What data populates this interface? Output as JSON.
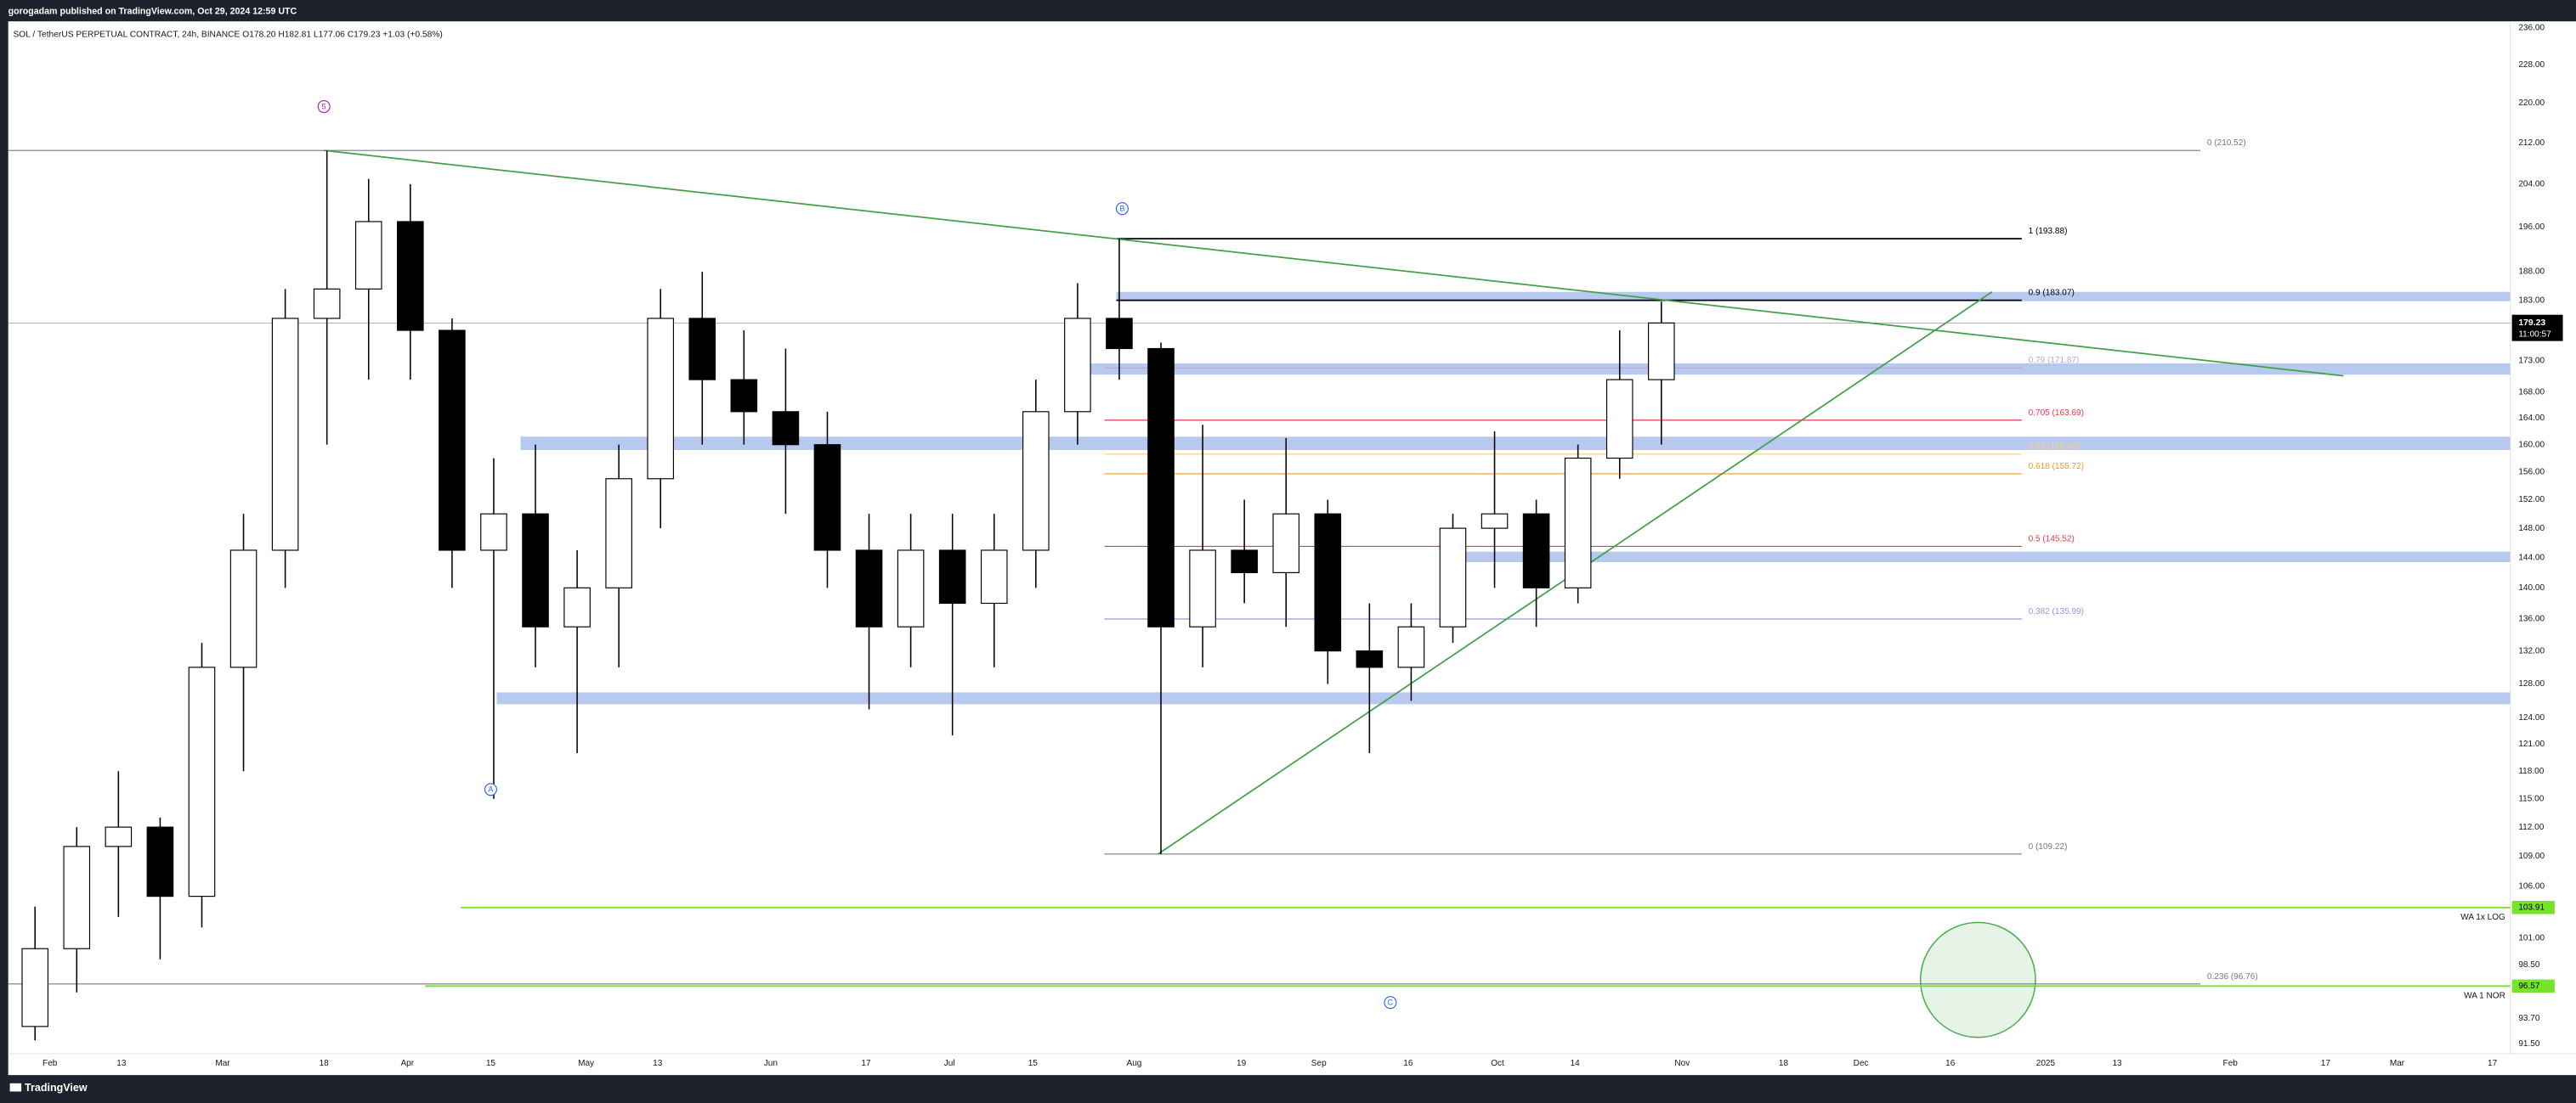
{
  "header": {
    "publisher": "gorogadam published on TradingView.com, Oct 29, 2024 12:59 UTC",
    "symbol_info": "SOL / TetherUS PERPETUAL CONTRACT, 24h, BINANCE O178.20 H182.81 L177.06 C179.23 +1.03 (+0.58%)"
  },
  "footer": {
    "brand": "TradingView"
  },
  "chart_data": {
    "type": "candlestick",
    "log_scale": true,
    "grid": false,
    "up_color": "#ffffff",
    "down_color": "#000000",
    "x": [
      "2024-01-26",
      "2024-02-02",
      "2024-02-09",
      "2024-02-16",
      "2024-02-23",
      "2024-03-01",
      "2024-03-08",
      "2024-03-15",
      "2024-03-22",
      "2024-03-29",
      "2024-04-05",
      "2024-04-12",
      "2024-04-19",
      "2024-04-26",
      "2024-05-03",
      "2024-05-10",
      "2024-05-17",
      "2024-05-24",
      "2024-05-31",
      "2024-06-07",
      "2024-06-14",
      "2024-06-21",
      "2024-06-28",
      "2024-07-05",
      "2024-07-12",
      "2024-07-19",
      "2024-07-26",
      "2024-08-02",
      "2024-08-09",
      "2024-08-16",
      "2024-08-23",
      "2024-08-30",
      "2024-09-06",
      "2024-09-13",
      "2024-09-20",
      "2024-09-27",
      "2024-10-04",
      "2024-10-11",
      "2024-10-18",
      "2024-10-25"
    ],
    "open": [
      93,
      100,
      110,
      112,
      105,
      130,
      145,
      180,
      185,
      197,
      178,
      145,
      150,
      135,
      140,
      155,
      180,
      170,
      165,
      160,
      145,
      135,
      145,
      138,
      145,
      165,
      180,
      175,
      135,
      145,
      142,
      150,
      132,
      130,
      135,
      148,
      150,
      140,
      158,
      170
    ],
    "high": [
      104,
      112,
      118,
      113,
      133,
      150,
      185,
      210.52,
      205,
      204,
      180,
      158,
      160,
      145,
      160,
      185,
      188,
      178,
      175,
      165,
      150,
      150,
      150,
      150,
      170,
      186,
      193.88,
      176,
      163,
      152,
      161,
      152,
      138,
      138,
      150,
      162,
      152,
      160,
      178,
      182.81
    ],
    "low": [
      91.8,
      96,
      103,
      99,
      102,
      118,
      140,
      160,
      170,
      170,
      140,
      115,
      130,
      120,
      130,
      148,
      160,
      160,
      150,
      140,
      125,
      130,
      122,
      130,
      140,
      160,
      170,
      109.22,
      130,
      138,
      135,
      128,
      120,
      126,
      133,
      140,
      135,
      138,
      155,
      160
    ],
    "close": [
      100,
      110,
      112,
      105,
      130,
      145,
      180,
      185,
      197,
      178,
      145,
      150,
      135,
      140,
      155,
      180,
      170,
      165,
      160,
      145,
      135,
      145,
      138,
      145,
      165,
      180,
      175,
      135,
      145,
      142,
      150,
      132,
      130,
      135,
      148,
      150,
      140,
      158,
      170,
      179.23
    ],
    "countdown": "11:00:57",
    "xlim": [
      "2024-01-25",
      "2025-03-20"
    ],
    "xticks": [
      {
        "value": "2024-02-01",
        "label": "Feb"
      },
      {
        "value": "2024-02-13",
        "label": "13"
      },
      {
        "value": "2024-03-01",
        "label": "Mar"
      },
      {
        "value": "2024-03-18",
        "label": "18"
      },
      {
        "value": "2024-04-01",
        "label": "Apr"
      },
      {
        "value": "2024-04-15",
        "label": "15"
      },
      {
        "value": "2024-05-01",
        "label": "May"
      },
      {
        "value": "2024-05-13",
        "label": "13"
      },
      {
        "value": "2024-06-01",
        "label": "Jun"
      },
      {
        "value": "2024-06-17",
        "label": "17"
      },
      {
        "value": "2024-07-01",
        "label": "Jul"
      },
      {
        "value": "2024-07-15",
        "label": "15"
      },
      {
        "value": "2024-08-01",
        "label": "Aug"
      },
      {
        "value": "2024-08-19",
        "label": "19"
      },
      {
        "value": "2024-09-01",
        "label": "Sep"
      },
      {
        "value": "2024-09-16",
        "label": "16"
      },
      {
        "value": "2024-10-01",
        "label": "Oct"
      },
      {
        "value": "2024-10-14",
        "label": "14"
      },
      {
        "value": "2024-11-01",
        "label": "Nov"
      },
      {
        "value": "2024-11-18",
        "label": "18"
      },
      {
        "value": "2024-12-01",
        "label": "Dec"
      },
      {
        "value": "2024-12-16",
        "label": "16"
      },
      {
        "value": "2025-01-01",
        "label": "2025"
      },
      {
        "value": "2025-01-13",
        "label": "13"
      },
      {
        "value": "2025-02-01",
        "label": "Feb"
      },
      {
        "value": "2025-02-17",
        "label": "17"
      },
      {
        "value": "2025-03-01",
        "label": "Mar"
      },
      {
        "value": "2025-03-17",
        "label": "17"
      }
    ],
    "ylim": [
      91.5,
      236
    ],
    "yticks": [
      {
        "value": 236,
        "label": "236.00"
      },
      {
        "value": 228,
        "label": "228.00"
      },
      {
        "value": 220,
        "label": "220.00"
      },
      {
        "value": 212,
        "label": "212.00"
      },
      {
        "value": 204,
        "label": "204.00"
      },
      {
        "value": 196,
        "label": "196.00"
      },
      {
        "value": 188,
        "label": "188.00"
      },
      {
        "value": 183,
        "label": "183.00"
      },
      {
        "value": 178,
        "label": "178.00"
      },
      {
        "value": 173,
        "label": "173.00"
      },
      {
        "value": 168,
        "label": "168.00"
      },
      {
        "value": 164,
        "label": "164.00"
      },
      {
        "value": 160,
        "label": "160.00"
      },
      {
        "value": 156,
        "label": "156.00"
      },
      {
        "value": 152,
        "label": "152.00"
      },
      {
        "value": 148,
        "label": "148.00"
      },
      {
        "value": 144,
        "label": "144.00"
      },
      {
        "value": 140,
        "label": "140.00"
      },
      {
        "value": 136,
        "label": "136.00"
      },
      {
        "value": 132,
        "label": "132.00"
      },
      {
        "value": 128,
        "label": "128.00"
      },
      {
        "value": 124,
        "label": "124.00"
      },
      {
        "value": 121,
        "label": "121.00"
      },
      {
        "value": 118,
        "label": "118.00"
      },
      {
        "value": 115,
        "label": "115.00"
      },
      {
        "value": 112,
        "label": "112.00"
      },
      {
        "value": 109,
        "label": "109.00"
      },
      {
        "value": 106,
        "label": "106.00"
      },
      {
        "value": 101,
        "label": "101.00"
      },
      {
        "value": 98.5,
        "label": "98.50"
      },
      {
        "value": 93.7,
        "label": "93.70"
      },
      {
        "value": 91.5,
        "label": "91.50"
      }
    ],
    "fib_levels": [
      {
        "label": "0 (210.52)",
        "value": 210.52,
        "color": "#787b86",
        "from": "2024-01-25",
        "to": "2025-01-27"
      },
      {
        "label": "1 (193.88)",
        "value": 193.88,
        "color": "#000000",
        "from": "2024-07-29",
        "to": "2024-12-28"
      },
      {
        "label": "0.9 (183.07)",
        "value": 183.07,
        "color": "#000000",
        "from": "2024-07-29",
        "to": "2024-12-28"
      },
      {
        "label": "0.79 (171.87)",
        "value": 171.87,
        "color": "#b4a7d6",
        "from": "2024-07-27",
        "to": "2024-12-28"
      },
      {
        "label": "0.705 (163.69)",
        "value": 163.69,
        "color": "#f23645",
        "from": "2024-07-27",
        "to": "2024-12-28"
      },
      {
        "label": "0.65 (158.60)",
        "value": 158.6,
        "color": "#ffcc80",
        "from": "2024-07-27",
        "to": "2024-12-28"
      },
      {
        "label": "0.618 (155.72)",
        "value": 155.72,
        "color": "#ff9800",
        "from": "2024-07-27",
        "to": "2024-12-28"
      },
      {
        "label": "0.5 (145.52)",
        "value": 145.52,
        "color": "#f23645",
        "from": "2024-07-27",
        "to": "2024-12-28"
      },
      {
        "label": "0.382 (135.99)",
        "value": 135.99,
        "color": "#9598d9",
        "from": "2024-07-27",
        "to": "2024-12-28"
      },
      {
        "label": "0 (109.22)",
        "value": 109.22,
        "color": "#787b86",
        "from": "2024-07-27",
        "to": "2024-12-28"
      },
      {
        "label": "0.236 (96.76)",
        "value": 96.76,
        "color": "#787b86",
        "from": "2024-01-25",
        "to": "2025-01-27"
      }
    ],
    "zones": [
      {
        "low": 182.9,
        "high": 184.5,
        "from": "2024-07-29",
        "color": "#b7c9ef"
      },
      {
        "low": 170.8,
        "high": 172.6,
        "from": "2024-07-21",
        "color": "#b7c9ef"
      },
      {
        "low": 159.2,
        "high": 161.2,
        "from": "2024-04-20",
        "color": "#b7c9ef"
      },
      {
        "low": 143.4,
        "high": 144.8,
        "from": "2024-09-22",
        "color": "#b7c9ef"
      },
      {
        "low": 125.6,
        "high": 127.0,
        "from": "2024-04-16",
        "color": "#b7c9ef"
      }
    ],
    "wa_lines": [
      {
        "label": "WA 1x LOG",
        "value": 103.91,
        "from": "2024-04-10",
        "color": "#76e32b"
      },
      {
        "label": "WA 1 NOR",
        "value": 96.57,
        "from": "2024-04-04",
        "color": "#76e32b"
      }
    ],
    "trendlines": [
      {
        "color": "#43a047",
        "points": [
          {
            "x": "2024-03-18",
            "y": 210.52
          },
          {
            "x": "2025-02-20",
            "y": 170.6
          }
        ]
      },
      {
        "color": "#43a047",
        "points": [
          {
            "x": "2024-08-05",
            "y": 109.22
          },
          {
            "x": "2024-12-23",
            "y": 184.5
          }
        ]
      }
    ],
    "wave_labels": [
      {
        "label": "5",
        "x": "2024-03-18",
        "y": 219.3,
        "color": "#9c27b0"
      },
      {
        "label": "B",
        "x": "2024-07-30",
        "y": 199.4,
        "color": "#2962ff"
      },
      {
        "label": "A",
        "x": "2024-04-15",
        "y": 116.0,
        "color": "#2962ff"
      },
      {
        "label": "C",
        "x": "2024-09-13",
        "y": 95.1,
        "color": "#2962ff"
      }
    ]
  }
}
